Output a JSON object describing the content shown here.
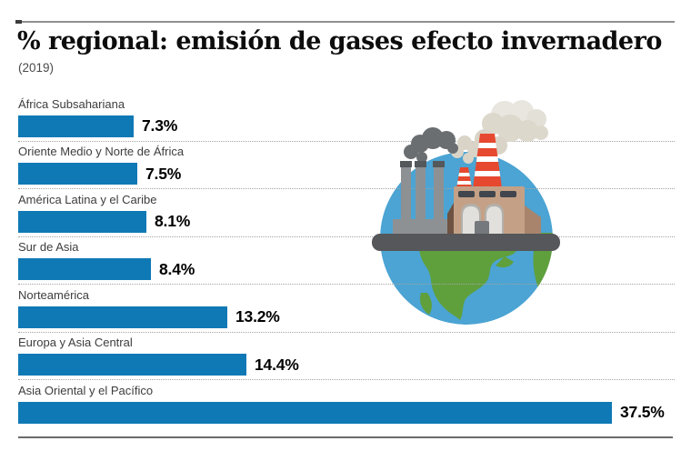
{
  "header": {
    "title": "% regional: emisión de gases efecto invernadero",
    "subtitle": "(2019)"
  },
  "chart_data": {
    "type": "bar",
    "orientation": "horizontal",
    "title": "% regional: emisión de gases efecto invernadero",
    "subtitle": "(2019)",
    "unit": "%",
    "categories": [
      "África Subsahariana",
      "Oriente Medio y Norte de África",
      "América Latina y el Caribe",
      "Sur de Asia",
      "Norteamérica",
      "Europa y Asia Central",
      "Asia Oriental y el Pacífico"
    ],
    "values": [
      7.3,
      7.5,
      8.1,
      8.4,
      13.2,
      14.4,
      37.5
    ],
    "value_labels": [
      "7.3%",
      "7.5%",
      "8.1%",
      "8.4%",
      "13.2%",
      "14.4%",
      "37.5%"
    ],
    "xlim": [
      0,
      37.5
    ],
    "bar_color": "#0f79b5",
    "row_separator": "dotted",
    "legend": "none",
    "grid": false
  },
  "illustration": {
    "name": "factory-on-half-globe",
    "colors": {
      "water": "#4ba4d3",
      "land": "#5fa03c",
      "platform": "#55575a",
      "chimney": "#8e9194",
      "chimney_cap": "#55585a",
      "dark_smoke": "#6b6e71",
      "light_smoke": "#dcd7cb",
      "factory_wall": "#c4a186",
      "factory_side": "#a8846c",
      "striped_stack_red": "#e6492f",
      "window_dark": "#41454d",
      "window_light": "#e2e0dd"
    }
  }
}
